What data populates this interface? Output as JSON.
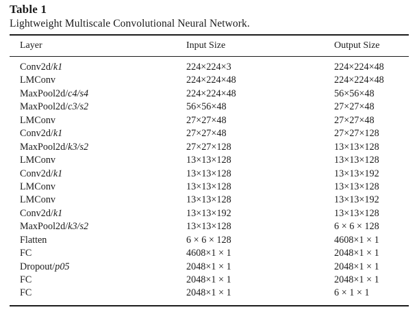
{
  "table": {
    "label": "Table 1",
    "caption": "Lightweight Multiscale Convolutional Neural Network.",
    "headers": {
      "layer": "Layer",
      "input": "Input Size",
      "output": "Output Size"
    },
    "rows": [
      {
        "layer_base": "Conv2d/",
        "layer_param": "k1",
        "input": "224×224×3",
        "output": "224×224×48"
      },
      {
        "layer_base": "LMConv",
        "layer_param": "",
        "input": "224×224×48",
        "output": "224×224×48"
      },
      {
        "layer_base": "MaxPool2d/",
        "layer_param": "c4/s4",
        "input": "224×224×48",
        "output": "56×56×48"
      },
      {
        "layer_base": "MaxPool2d/",
        "layer_param": "c3/s2",
        "input": "56×56×48",
        "output": "27×27×48"
      },
      {
        "layer_base": "LMConv",
        "layer_param": "",
        "input": "27×27×48",
        "output": "27×27×48"
      },
      {
        "layer_base": "Conv2d/",
        "layer_param": "k1",
        "input": "27×27×48",
        "output": "27×27×128"
      },
      {
        "layer_base": "MaxPool2d/",
        "layer_param": "k3/s2",
        "input": "27×27×128",
        "output": "13×13×128"
      },
      {
        "layer_base": "LMConv",
        "layer_param": "",
        "input": "13×13×128",
        "output": "13×13×128"
      },
      {
        "layer_base": "Conv2d/",
        "layer_param": "k1",
        "input": "13×13×128",
        "output": "13×13×192"
      },
      {
        "layer_base": "LMConv",
        "layer_param": "",
        "input": "13×13×128",
        "output": "13×13×128"
      },
      {
        "layer_base": "LMConv",
        "layer_param": "",
        "input": "13×13×128",
        "output": "13×13×192"
      },
      {
        "layer_base": "Conv2d/",
        "layer_param": "k1",
        "input": "13×13×192",
        "output": "13×13×128"
      },
      {
        "layer_base": "MaxPool2d/",
        "layer_param": "k3/s2",
        "input": "13×13×128",
        "output": "6 × 6 × 128"
      },
      {
        "layer_base": "Flatten",
        "layer_param": "",
        "input": "6 × 6 × 128",
        "output": "4608×1 × 1"
      },
      {
        "layer_base": "FC",
        "layer_param": "",
        "input": "4608×1 × 1",
        "output": "2048×1 × 1"
      },
      {
        "layer_base": "Dropout/",
        "layer_param": "p05",
        "input": "2048×1 × 1",
        "output": "2048×1 × 1"
      },
      {
        "layer_base": "FC",
        "layer_param": "",
        "input": "2048×1 × 1",
        "output": "2048×1 × 1"
      },
      {
        "layer_base": "FC",
        "layer_param": "",
        "input": "2048×1 × 1",
        "output": "6 × 1 × 1"
      }
    ]
  }
}
